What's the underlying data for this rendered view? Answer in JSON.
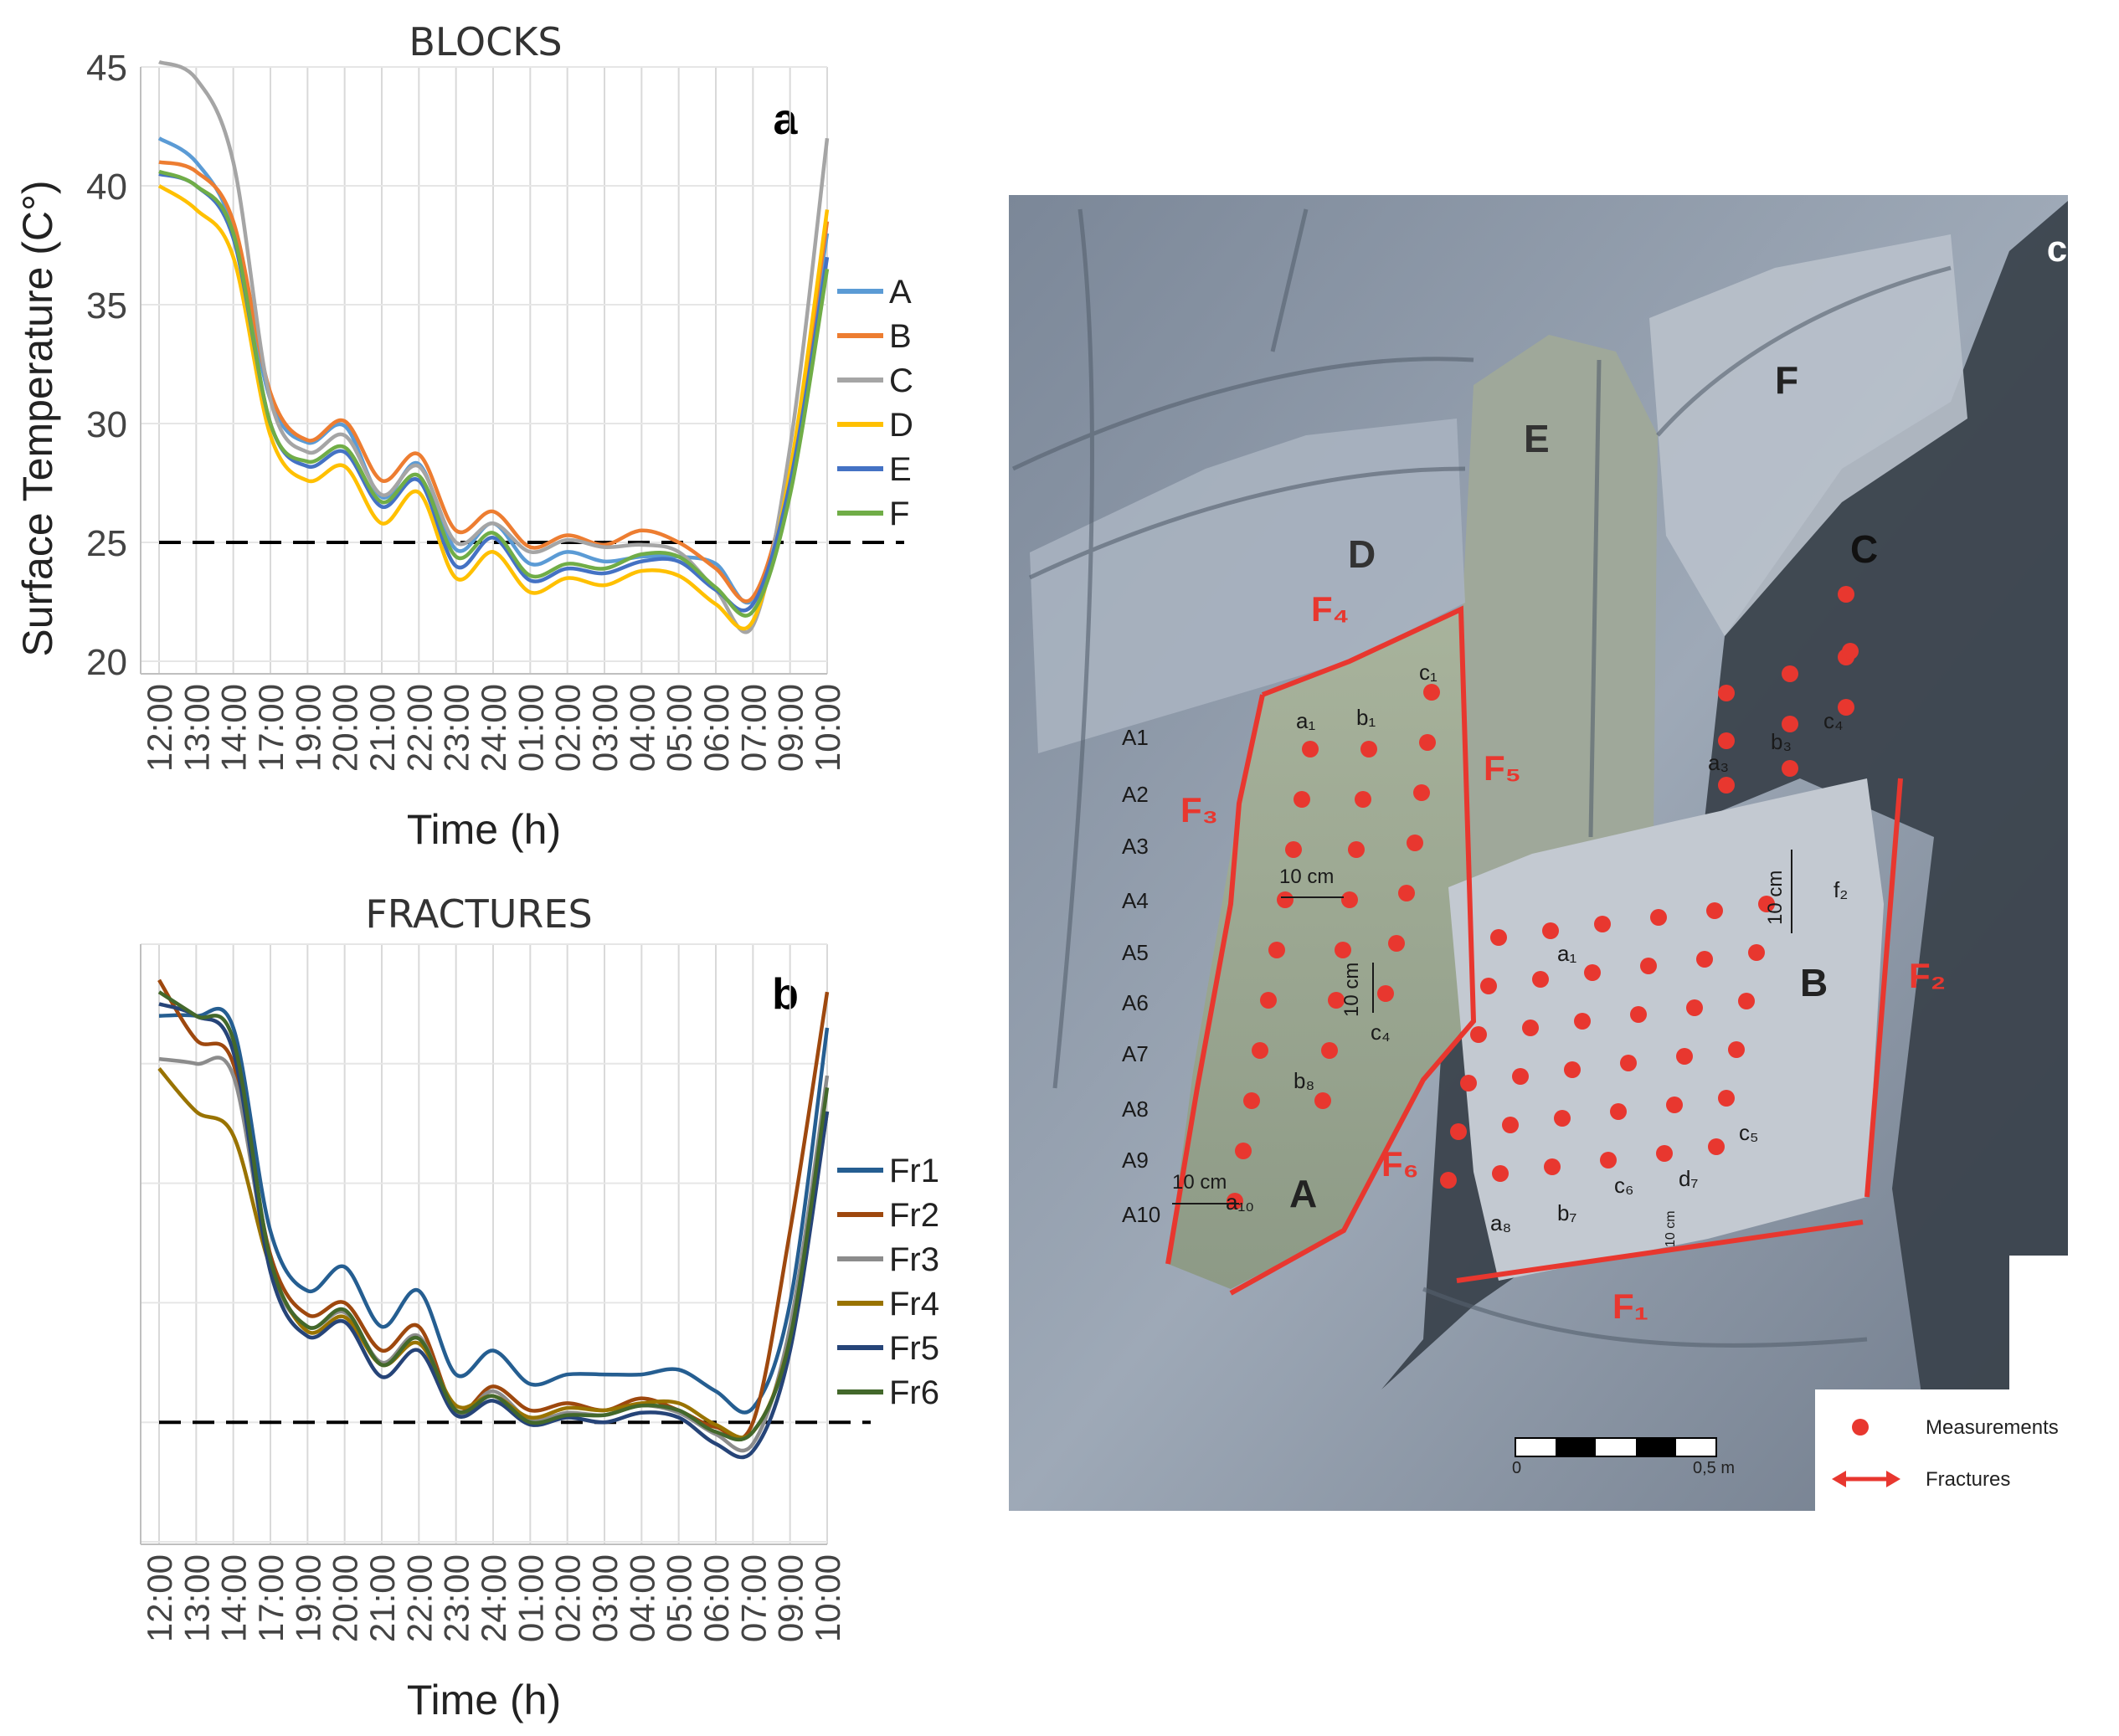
{
  "panel_a": {
    "title": "BLOCKS",
    "panel_label": "a",
    "ylabel": "Surface Temperature  (C°)",
    "xlabel": "Time (h)",
    "ytick_labels": [
      "20",
      "25",
      "30",
      "35",
      "40",
      "45"
    ],
    "xtick_labels": [
      "12:00",
      "13:00",
      "14:00",
      "17:00",
      "19:00",
      "20:00",
      "21:00",
      "22:00",
      "23:00",
      "24:00",
      "01:00",
      "02:00",
      "03:00",
      "04:00",
      "05:00",
      "06:00",
      "07:00",
      "09:00",
      "10:00"
    ],
    "legend": [
      "A",
      "B",
      "C",
      "D",
      "E",
      "F"
    ]
  },
  "panel_b": {
    "title": "FRACTURES",
    "panel_label": "b",
    "xlabel": "Time (h)",
    "xtick_labels": [
      "12:00",
      "13:00",
      "14:00",
      "17:00",
      "19:00",
      "20:00",
      "21:00",
      "22:00",
      "23:00",
      "24:00",
      "01:00",
      "02:00",
      "03:00",
      "04:00",
      "05:00",
      "06:00",
      "07:00",
      "09:00",
      "10:00"
    ],
    "legend": [
      "Fr1",
      "Fr2",
      "Fr3",
      "Fr4",
      "Fr5",
      "Fr6"
    ]
  },
  "panel_c": {
    "panel_label": "c",
    "block_labels": [
      "A",
      "B",
      "C",
      "D",
      "E",
      "F"
    ],
    "fracture_labels": [
      "F₁",
      "F₂",
      "F₃",
      "F₄",
      "F₅",
      "F₆"
    ],
    "row_labels": [
      "A1",
      "A2",
      "A3",
      "A4",
      "A5",
      "A6",
      "A7",
      "A8",
      "A9",
      "A10"
    ],
    "point_labels": [
      "a₁",
      "b₁",
      "c₁",
      "c₄",
      "b₈",
      "a₁₀",
      "a₁",
      "f₂",
      "a₈",
      "b₇",
      "c₆",
      "d₇",
      "c₅",
      "a₃",
      "b₃",
      "c₄"
    ],
    "scale_text": [
      "10 cm",
      "10 cm",
      "10 cm",
      "10 cm",
      "10 cm"
    ],
    "scalebar_zero": "0",
    "scalebar_end": "0,5 m",
    "legend": {
      "measurements": "Measurements",
      "fractures": "Fractures"
    }
  },
  "colors": {
    "A": "#5B9BD5",
    "B": "#ED7D31",
    "C": "#A5A5A5",
    "D": "#FFC000",
    "E": "#4472C4",
    "F": "#70AD47",
    "Fr1": "#255E91",
    "Fr2": "#9E480E",
    "Fr3": "#8C8C8C",
    "Fr4": "#997300",
    "Fr5": "#264478",
    "Fr6": "#43682B",
    "marker": "#E8372F",
    "rock": "#9AA6B5",
    "dark_rock": "#3A4149"
  },
  "chart_data": [
    {
      "type": "line",
      "title": "BLOCKS",
      "xlabel": "Time (h)",
      "ylabel": "Surface Temperature  (C°)",
      "ylim": [
        20,
        45
      ],
      "grid": "vertical",
      "legend_position": "right",
      "reference_line": 25,
      "categories": [
        "12:00",
        "13:00",
        "14:00",
        "17:00",
        "19:00",
        "20:00",
        "21:00",
        "22:00",
        "23:00",
        "24:00",
        "01:00",
        "02:00",
        "03:00",
        "04:00",
        "05:00",
        "06:00",
        "07:00",
        "09:00",
        "10:00"
      ],
      "series": [
        {
          "name": "A",
          "values": [
            42.0,
            41.0,
            38.2,
            31.0,
            29.2,
            29.9,
            26.9,
            28.3,
            24.7,
            25.8,
            24.1,
            24.6,
            24.2,
            24.4,
            24.4,
            24.1,
            22.6,
            28.0,
            38.0
          ]
        },
        {
          "name": "B",
          "values": [
            41.0,
            40.6,
            38.5,
            31.3,
            29.3,
            30.1,
            27.6,
            28.7,
            25.5,
            26.3,
            24.8,
            25.3,
            24.9,
            25.5,
            25.0,
            23.9,
            22.7,
            28.0,
            38.5
          ]
        },
        {
          "name": "C",
          "values": [
            45.5,
            44.5,
            41.0,
            31.0,
            28.8,
            29.5,
            27.0,
            28.2,
            25.0,
            25.8,
            24.6,
            25.1,
            24.8,
            24.9,
            24.6,
            23.0,
            21.5,
            29.0,
            42.0
          ]
        },
        {
          "name": "D",
          "values": [
            40.0,
            39.0,
            37.0,
            29.5,
            27.6,
            28.2,
            25.8,
            27.1,
            23.5,
            24.6,
            22.9,
            23.5,
            23.2,
            23.8,
            23.6,
            22.4,
            21.7,
            28.0,
            39.0
          ]
        },
        {
          "name": "E",
          "values": [
            40.5,
            40.0,
            37.8,
            30.0,
            28.2,
            28.8,
            26.5,
            27.6,
            24.0,
            25.2,
            23.4,
            23.9,
            23.7,
            24.2,
            24.2,
            23.0,
            22.4,
            27.5,
            37.0
          ]
        },
        {
          "name": "F",
          "values": [
            40.6,
            40.0,
            38.0,
            30.0,
            28.4,
            29.0,
            26.7,
            27.8,
            24.4,
            25.4,
            23.6,
            24.1,
            23.9,
            24.5,
            24.4,
            23.1,
            22.1,
            27.0,
            36.5
          ]
        }
      ]
    },
    {
      "type": "line",
      "title": "FRACTURES",
      "xlabel": "Time (h)",
      "ylim": [
        20,
        45
      ],
      "grid": "vertical",
      "legend_position": "right",
      "reference_line": 25,
      "categories": [
        "12:00",
        "13:00",
        "14:00",
        "17:00",
        "19:00",
        "20:00",
        "21:00",
        "22:00",
        "23:00",
        "24:00",
        "01:00",
        "02:00",
        "03:00",
        "04:00",
        "05:00",
        "06:00",
        "07:00",
        "09:00",
        "10:00"
      ],
      "series": [
        {
          "name": "Fr1",
          "values": [
            42.0,
            42.0,
            41.5,
            33.0,
            30.5,
            31.5,
            29.0,
            30.5,
            27.0,
            28.0,
            26.6,
            27.0,
            27.0,
            27.0,
            27.2,
            26.3,
            25.6,
            30.0,
            41.5
          ]
        },
        {
          "name": "Fr2",
          "values": [
            43.5,
            41.0,
            40.0,
            32.0,
            29.5,
            30.0,
            28.0,
            29.0,
            25.5,
            26.5,
            25.5,
            25.8,
            25.5,
            26.0,
            25.5,
            24.8,
            25.0,
            33.0,
            43.0
          ]
        },
        {
          "name": "Fr3",
          "values": [
            40.2,
            40.0,
            39.5,
            31.5,
            29.0,
            29.6,
            27.5,
            28.6,
            25.4,
            26.3,
            25.1,
            25.4,
            25.3,
            25.7,
            25.4,
            24.5,
            24.1,
            29.0,
            39.5
          ]
        },
        {
          "name": "Fr4",
          "values": [
            39.8,
            38.0,
            37.0,
            31.5,
            28.8,
            29.4,
            27.4,
            28.3,
            25.7,
            26.1,
            25.2,
            25.6,
            25.5,
            25.8,
            25.8,
            24.9,
            24.6,
            28.5,
            38.0
          ]
        },
        {
          "name": "Fr5",
          "values": [
            42.5,
            42.0,
            40.5,
            31.3,
            28.6,
            29.2,
            26.9,
            28.0,
            25.3,
            25.9,
            24.9,
            25.2,
            25.0,
            25.4,
            25.2,
            24.1,
            23.8,
            28.0,
            38.0
          ]
        },
        {
          "name": "Fr6",
          "values": [
            43.0,
            42.0,
            41.0,
            31.8,
            29.0,
            29.7,
            27.4,
            28.5,
            25.5,
            26.1,
            25.0,
            25.3,
            25.3,
            25.7,
            25.5,
            24.6,
            24.6,
            28.5,
            39.0
          ]
        }
      ]
    }
  ]
}
